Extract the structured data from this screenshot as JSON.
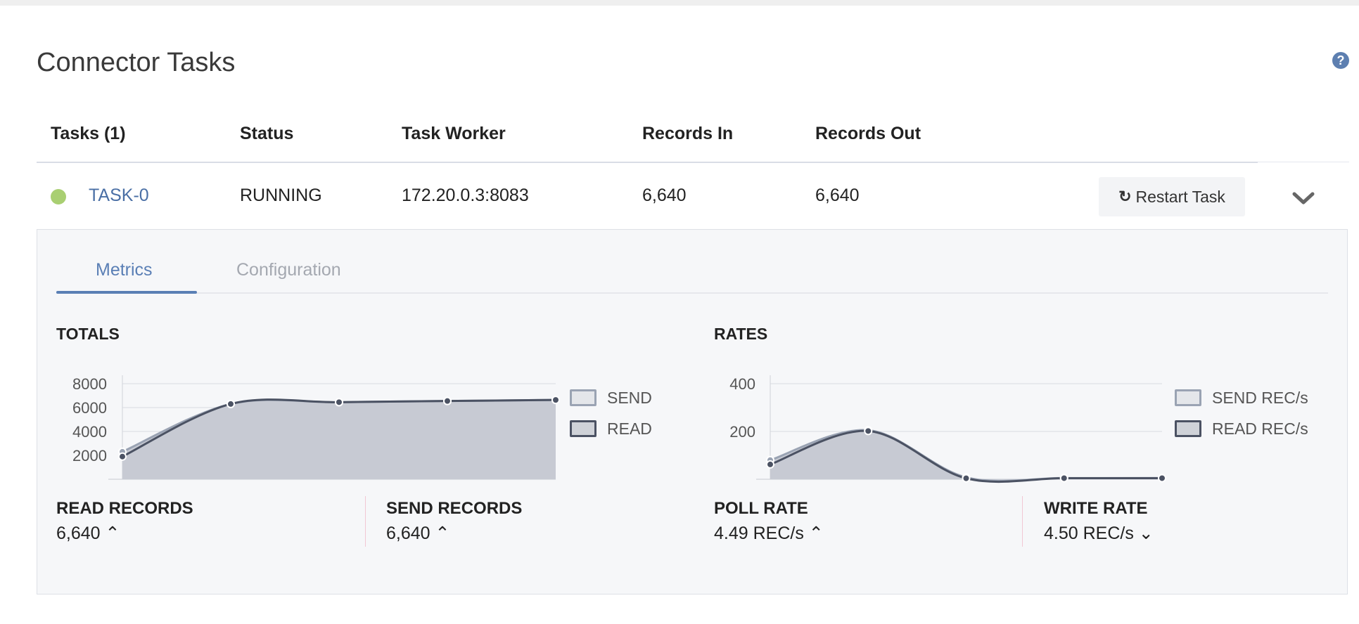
{
  "page": {
    "title": "Connector Tasks",
    "help_icon": "question-circle-icon"
  },
  "table": {
    "headers": {
      "tasks": "Tasks (1)",
      "status": "Status",
      "worker": "Task Worker",
      "records_in": "Records In",
      "records_out": "Records Out"
    },
    "row": {
      "task": "TASK-0",
      "status": "RUNNING",
      "worker": "172.20.0.3:8083",
      "records_in": "6,640",
      "records_out": "6,640",
      "status_color": "#a9cf72"
    },
    "restart_label": "Restart Task",
    "restart_icon": "refresh-icon",
    "expand_icon": "chevron-down-icon"
  },
  "tabs": [
    {
      "label": "Metrics",
      "active": true
    },
    {
      "label": "Configuration",
      "active": false
    }
  ],
  "totals": {
    "title": "TOTALS",
    "read_label": "READ RECORDS",
    "read_value": "6,640",
    "send_label": "SEND RECORDS",
    "send_value": "6,640"
  },
  "rates": {
    "title": "RATES",
    "poll_label": "POLL RATE",
    "poll_value": "4.49 REC/s",
    "write_label": "WRITE RATE",
    "write_value": "4.50 REC/s"
  },
  "chart_data": [
    {
      "type": "area",
      "title": "TOTALS",
      "x": [
        0,
        1,
        2,
        3,
        4
      ],
      "ylim": [
        0,
        8000
      ],
      "yticks": [
        "8000",
        "6000",
        "4000",
        "2000"
      ],
      "grid": true,
      "legend": "right",
      "series": [
        {
          "name": "SEND",
          "values": [
            2300,
            6300,
            6450,
            6550,
            6640
          ],
          "color": "#9aa3b3"
        },
        {
          "name": "READ",
          "values": [
            1900,
            6300,
            6450,
            6550,
            6640
          ],
          "color": "#4b5263"
        }
      ]
    },
    {
      "type": "area",
      "title": "RATES",
      "x": [
        0,
        1,
        2,
        3,
        4
      ],
      "ylim": [
        0,
        400
      ],
      "yticks": [
        "400",
        "200"
      ],
      "grid": true,
      "legend": "right",
      "series": [
        {
          "name": "SEND REC/s",
          "values": [
            80,
            205,
            8,
            5,
            5
          ],
          "color": "#9aa3b3"
        },
        {
          "name": "READ REC/s",
          "values": [
            62,
            202,
            4,
            4.49,
            4.5
          ],
          "color": "#4b5263"
        }
      ]
    }
  ]
}
